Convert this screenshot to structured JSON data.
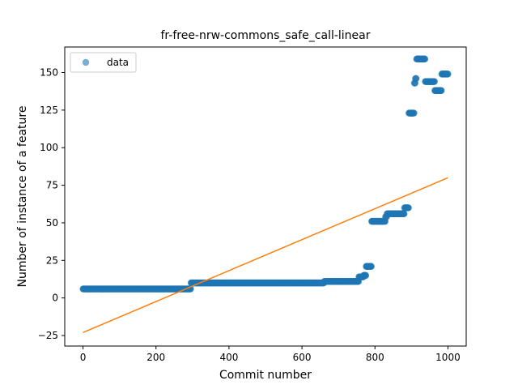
{
  "chart_data": {
    "type": "scatter",
    "title": "fr-free-nrw-commons_safe_call-linear",
    "xlabel": "Commit number",
    "ylabel": "Number of instance of a feature",
    "xlim": [
      -50,
      1050
    ],
    "ylim": [
      -32,
      167
    ],
    "xticks": [
      0,
      200,
      400,
      600,
      800,
      1000
    ],
    "yticks": [
      -25,
      0,
      25,
      50,
      75,
      100,
      125,
      150
    ],
    "legend": {
      "position": "top-left",
      "entries": [
        "data"
      ]
    },
    "colors": {
      "data": "#1f77b4",
      "fit": "#ff7f0e"
    },
    "series": [
      {
        "name": "data",
        "kind": "scatter",
        "segments": [
          {
            "x_start": 0,
            "x_end": 295,
            "y": 6
          },
          {
            "x_start": 296,
            "x_end": 660,
            "y": 10
          },
          {
            "x_start": 661,
            "x_end": 755,
            "y": 11
          },
          {
            "x_start": 756,
            "x_end": 768,
            "y": 14
          },
          {
            "x_start": 769,
            "x_end": 775,
            "y": 15
          },
          {
            "x_start": 776,
            "x_end": 790,
            "y": 21
          },
          {
            "x_start": 791,
            "x_end": 828,
            "y": 51
          },
          {
            "x_start": 829,
            "x_end": 832,
            "y": 54
          },
          {
            "x_start": 833,
            "x_end": 880,
            "y": 56
          },
          {
            "x_start": 881,
            "x_end": 892,
            "y": 60
          },
          {
            "x_start": 893,
            "x_end": 907,
            "y": 123
          },
          {
            "x_start": 908,
            "x_end": 910,
            "y": 143
          },
          {
            "x_start": 911,
            "x_end": 913,
            "y": 146
          },
          {
            "x_start": 914,
            "x_end": 937,
            "y": 159
          },
          {
            "x_start": 938,
            "x_end": 963,
            "y": 144
          },
          {
            "x_start": 964,
            "x_end": 982,
            "y": 138
          },
          {
            "x_start": 983,
            "x_end": 1000,
            "y": 149
          }
        ]
      },
      {
        "name": "",
        "kind": "line",
        "x": [
          0,
          1000
        ],
        "y": [
          -23,
          80
        ]
      }
    ]
  }
}
